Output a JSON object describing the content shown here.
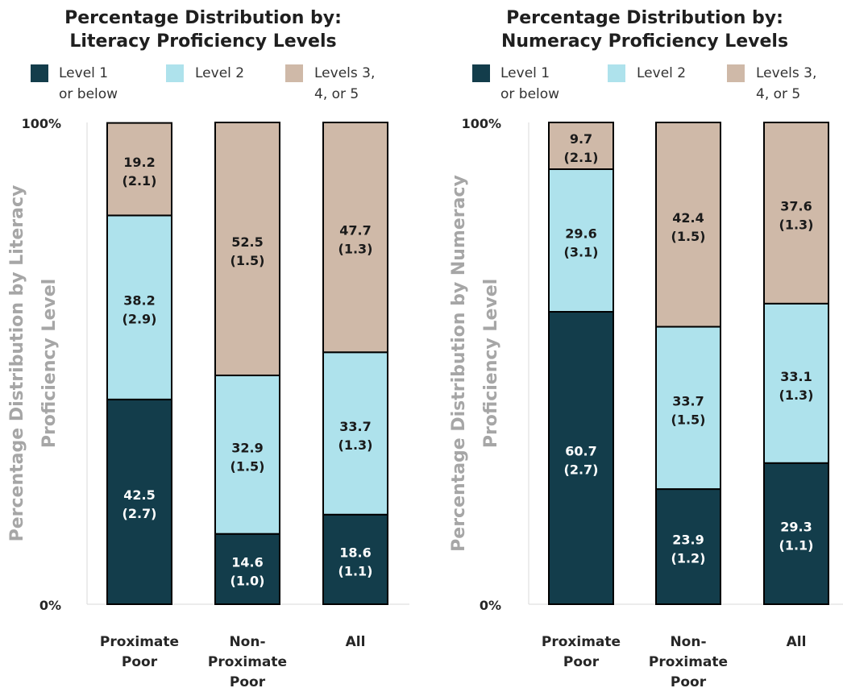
{
  "chart_data": [
    {
      "type": "bar",
      "stacked": true,
      "title_lines": [
        "Percentage Distribution by:",
        "Literacy Proficiency Levels"
      ],
      "ylabel_lines": [
        "Percentage Distribution by Literacy",
        "Proficiency Level"
      ],
      "ytick_labels": [
        "0%",
        "100%"
      ],
      "ylim": [
        0,
        100
      ],
      "categories": [
        [
          "Proximate",
          "Poor"
        ],
        [
          "Non-",
          "Proximate",
          "Poor"
        ],
        [
          "All"
        ]
      ],
      "series": [
        {
          "name": "Level 1 or below",
          "legend_lines": [
            "Level 1",
            "or below"
          ],
          "color": "#133d4b",
          "label_color": "#ffffff",
          "values": [
            42.5,
            14.6,
            18.6
          ],
          "se": [
            "(2.7)",
            "(1.0)",
            "(1.1)"
          ]
        },
        {
          "name": "Level 2",
          "legend_lines": [
            "Level 2"
          ],
          "color": "#aee2ec",
          "label_color": "#1a1a1a",
          "values": [
            38.2,
            32.9,
            33.7
          ],
          "se": [
            "(2.9)",
            "(1.5)",
            "(1.3)"
          ]
        },
        {
          "name": "Levels 3, 4, or 5",
          "legend_lines": [
            "Levels 3,",
            "4, or 5"
          ],
          "color": "#cfb9a8",
          "label_color": "#1a1a1a",
          "values": [
            19.2,
            52.5,
            47.7
          ],
          "se": [
            "(2.1)",
            "(1.5)",
            "(1.3)"
          ]
        }
      ],
      "grid": false,
      "legend": "top"
    },
    {
      "type": "bar",
      "stacked": true,
      "title_lines": [
        "Percentage Distribution by:",
        "Numeracy Proficiency Levels"
      ],
      "ylabel_lines": [
        "Percentage Distribution by Numeracy",
        "Proficiency Level"
      ],
      "ytick_labels": [
        "0%",
        "100%"
      ],
      "ylim": [
        0,
        100
      ],
      "categories": [
        [
          "Proximate",
          "Poor"
        ],
        [
          "Non-",
          "Proximate",
          "Poor"
        ],
        [
          "All"
        ]
      ],
      "series": [
        {
          "name": "Level 1 or below",
          "legend_lines": [
            "Level 1",
            "or below"
          ],
          "color": "#133d4b",
          "label_color": "#ffffff",
          "values": [
            60.7,
            23.9,
            29.3
          ],
          "se": [
            "(2.7)",
            "(1.2)",
            "(1.1)"
          ]
        },
        {
          "name": "Level 2",
          "legend_lines": [
            "Level 2"
          ],
          "color": "#aee2ec",
          "label_color": "#1a1a1a",
          "values": [
            29.6,
            33.7,
            33.1
          ],
          "se": [
            "(3.1)",
            "(1.5)",
            "(1.3)"
          ]
        },
        {
          "name": "Levels 3, 4, or 5",
          "legend_lines": [
            "Levels 3,",
            "4, or 5"
          ],
          "color": "#cfb9a8",
          "label_color": "#1a1a1a",
          "values": [
            9.7,
            42.4,
            37.6
          ],
          "se": [
            "(2.1)",
            "(1.5)",
            "(1.3)"
          ]
        }
      ],
      "grid": false,
      "legend": "top"
    }
  ]
}
